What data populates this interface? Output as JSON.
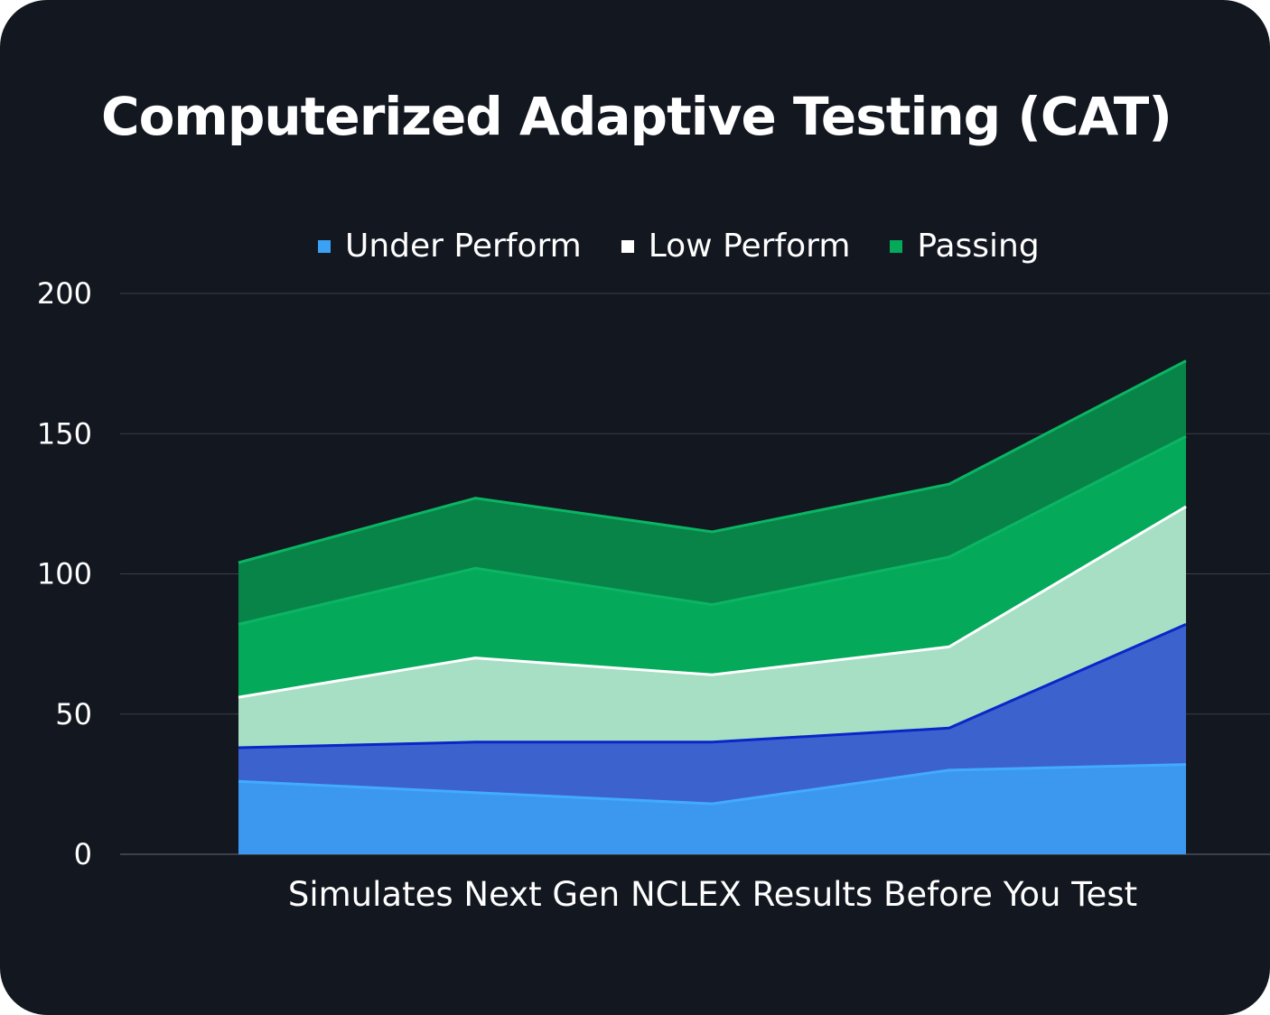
{
  "chart_data": {
    "type": "area",
    "title": "Computerized Adaptive Testing (CAT)",
    "xlabel": "Simulates Next Gen NCLEX Results Before You Test",
    "ylabel": "",
    "ylim": [
      0,
      200
    ],
    "yticks": [
      "0",
      "50",
      "100",
      "150",
      "200"
    ],
    "ytick_values": [
      0,
      50,
      100,
      150,
      200
    ],
    "grid": true,
    "legend_position": "top",
    "x": [
      1,
      2,
      3,
      4,
      5
    ],
    "stacked": true,
    "legend": [
      {
        "name": "Under Perform",
        "color": "#3aa1f5"
      },
      {
        "name": "Low Perform",
        "color": "#ffffff"
      },
      {
        "name": "Passing",
        "color": "#04a95a"
      }
    ],
    "series": [
      {
        "name": "Under Perform (light)",
        "values": [
          26,
          22,
          18,
          30,
          32
        ],
        "fill": "#3b98ee",
        "line": "#42abff"
      },
      {
        "name": "Under Perform (dark)",
        "values": [
          12,
          18,
          22,
          15,
          50
        ],
        "fill": "#3c62cd",
        "line": "#0a26c8"
      },
      {
        "name": "Low Perform",
        "values": [
          18,
          30,
          24,
          29,
          42
        ],
        "fill": "#a7dfc5",
        "line": "#ffffff"
      },
      {
        "name": "Passing (light)",
        "values": [
          26,
          32,
          25,
          32,
          25
        ],
        "fill": "#04a95a",
        "line": "#0bb563"
      },
      {
        "name": "Passing (dark)",
        "values": [
          22,
          25,
          26,
          26,
          27
        ],
        "fill": "#088449",
        "line": "#0bb563"
      }
    ]
  }
}
